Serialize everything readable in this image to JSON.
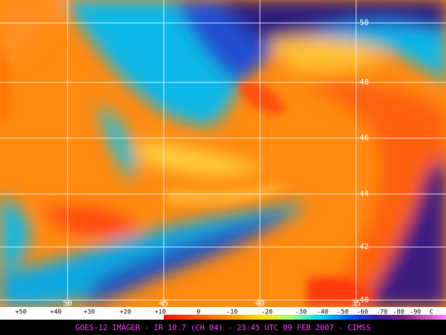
{
  "map": {
    "lat_labels": [
      "50",
      "48",
      "46",
      "44",
      "42",
      "40"
    ],
    "lon_labels": [
      "50",
      "45",
      "40",
      "35"
    ],
    "colorbar": {
      "labels": [
        "+50",
        "+40",
        "+30",
        "+20",
        "+10",
        "0",
        "-10",
        "-20",
        "-30",
        "-40",
        "-50",
        "-60",
        "-70",
        "-80",
        "-90"
      ],
      "unit": "C"
    },
    "footer": "GOES-12 IMAGER - IR 10.7 (CH 04) - 23:45 UTC 09 FEB 2007 - CIMSS"
  }
}
